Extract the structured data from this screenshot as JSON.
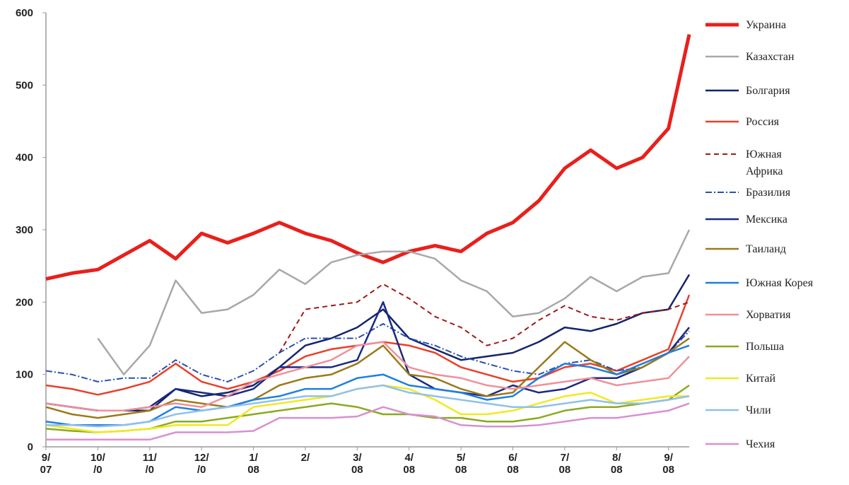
{
  "chart_data": {
    "type": "line",
    "x": [
      0,
      0.5,
      1,
      1.5,
      2,
      2.5,
      3,
      3.5,
      4,
      4.5,
      5,
      5.5,
      6,
      6.5,
      7,
      7.5,
      8,
      8.5,
      9,
      9.5,
      10,
      10.5,
      11,
      11.5,
      12,
      12.4
    ],
    "xlim": [
      0,
      12.4
    ],
    "xticks": [
      {
        "value": 0,
        "label": "9/\n07"
      },
      {
        "value": 1,
        "label": "10/\n/0"
      },
      {
        "value": 2,
        "label": "11/\n/0"
      },
      {
        "value": 3,
        "label": "12/\n/0"
      },
      {
        "value": 4,
        "label": "1/\n08"
      },
      {
        "value": 5,
        "label": "2/"
      },
      {
        "value": 6,
        "label": "3/\n08"
      },
      {
        "value": 7,
        "label": "4/\n08"
      },
      {
        "value": 8,
        "label": "5/\n08"
      },
      {
        "value": 9,
        "label": "6/\n08"
      },
      {
        "value": 10,
        "label": "7/\n08"
      },
      {
        "value": 11,
        "label": "8/\n08"
      },
      {
        "value": 12,
        "label": "9/\n08"
      }
    ],
    "ylim": [
      0,
      600
    ],
    "yticks": [
      0,
      100,
      200,
      300,
      400,
      500,
      600
    ],
    "grid": false,
    "legend": "right",
    "series": [
      {
        "name": "Украина",
        "color": "#e8201c",
        "width": 5,
        "values": [
          232,
          240,
          245,
          265,
          285,
          260,
          295,
          282,
          295,
          310,
          295,
          285,
          268,
          255,
          270,
          278,
          270,
          295,
          310,
          340,
          385,
          410,
          385,
          400,
          440,
          570
        ]
      },
      {
        "name": "Казахстан",
        "color": "#a8a8a8",
        "width": 2.5,
        "values": [
          null,
          null,
          150,
          100,
          140,
          230,
          185,
          190,
          210,
          245,
          225,
          255,
          265,
          270,
          270,
          260,
          230,
          215,
          180,
          185,
          205,
          235,
          215,
          235,
          240,
          300
        ]
      },
      {
        "name": "Болгария",
        "color": "#14246e",
        "width": 2.5,
        "values": [
          60,
          55,
          50,
          50,
          50,
          80,
          70,
          75,
          85,
          110,
          140,
          150,
          165,
          190,
          150,
          135,
          120,
          125,
          130,
          145,
          165,
          160,
          170,
          185,
          190,
          238
        ]
      },
      {
        "name": "Россия",
        "color": "#e8402a",
        "width": 2.5,
        "values": [
          85,
          80,
          72,
          80,
          90,
          115,
          90,
          80,
          90,
          105,
          125,
          135,
          140,
          145,
          140,
          130,
          110,
          100,
          90,
          95,
          110,
          115,
          105,
          120,
          135,
          210
        ]
      },
      {
        "name": "Южная\nАфрика",
        "color": "#9e1a1a",
        "width": 2,
        "dash": "7,5",
        "values": [
          null,
          null,
          null,
          null,
          null,
          null,
          null,
          null,
          null,
          130,
          190,
          195,
          200,
          225,
          205,
          180,
          165,
          140,
          150,
          175,
          195,
          180,
          175,
          185,
          190,
          200
        ]
      },
      {
        "name": "Бразилия",
        "color": "#2a4fb0",
        "width": 2,
        "dash": "9,3,2,3",
        "values": [
          105,
          100,
          90,
          95,
          95,
          120,
          100,
          90,
          105,
          130,
          150,
          150,
          150,
          170,
          150,
          140,
          125,
          115,
          105,
          100,
          115,
          120,
          105,
          110,
          130,
          160
        ]
      },
      {
        "name": "Мексика",
        "color": "#1a2a80",
        "width": 2.5,
        "values": [
          60,
          55,
          50,
          50,
          55,
          80,
          75,
          70,
          80,
          110,
          110,
          110,
          120,
          200,
          100,
          80,
          75,
          70,
          85,
          75,
          80,
          95,
          95,
          110,
          130,
          165
        ]
      },
      {
        "name": "Таиланд",
        "color": "#9a7a1a",
        "width": 2.5,
        "values": [
          55,
          45,
          40,
          45,
          50,
          65,
          60,
          55,
          65,
          85,
          95,
          100,
          115,
          140,
          100,
          95,
          80,
          70,
          75,
          110,
          145,
          120,
          100,
          110,
          130,
          150
        ]
      },
      {
        "name": "Южная Корея",
        "color": "#1e7fe0",
        "width": 2.5,
        "values": [
          35,
          30,
          30,
          30,
          35,
          55,
          50,
          55,
          65,
          70,
          80,
          80,
          95,
          100,
          85,
          80,
          75,
          65,
          70,
          95,
          115,
          110,
          100,
          115,
          130,
          140
        ]
      },
      {
        "name": "Хорватия",
        "color": "#f0909a",
        "width": 2.5,
        "values": [
          60,
          55,
          50,
          50,
          55,
          60,
          55,
          70,
          90,
          100,
          110,
          120,
          140,
          145,
          110,
          100,
          95,
          85,
          80,
          85,
          90,
          95,
          85,
          90,
          95,
          125
        ]
      },
      {
        "name": "Польша",
        "color": "#8aaa20",
        "width": 2.5,
        "values": [
          25,
          22,
          20,
          22,
          25,
          35,
          35,
          40,
          45,
          50,
          55,
          60,
          55,
          45,
          45,
          40,
          40,
          35,
          35,
          40,
          50,
          55,
          55,
          60,
          65,
          85
        ]
      },
      {
        "name": "Китай",
        "color": "#f0ea20",
        "width": 2.5,
        "values": [
          30,
          25,
          20,
          22,
          25,
          30,
          30,
          30,
          55,
          60,
          65,
          70,
          80,
          85,
          80,
          65,
          45,
          45,
          50,
          60,
          70,
          75,
          60,
          65,
          70,
          70
        ]
      },
      {
        "name": "Чили",
        "color": "#90c0ec",
        "width": 2.5,
        "values": [
          30,
          30,
          28,
          30,
          35,
          45,
          50,
          55,
          60,
          65,
          70,
          70,
          80,
          85,
          75,
          70,
          65,
          60,
          55,
          55,
          60,
          65,
          60,
          60,
          65,
          70
        ]
      },
      {
        "name": "Чехия",
        "color": "#d890d0",
        "width": 2.5,
        "values": [
          10,
          10,
          10,
          10,
          10,
          20,
          20,
          20,
          22,
          40,
          40,
          40,
          42,
          55,
          45,
          42,
          30,
          28,
          28,
          30,
          35,
          40,
          40,
          45,
          50,
          60
        ]
      }
    ]
  }
}
